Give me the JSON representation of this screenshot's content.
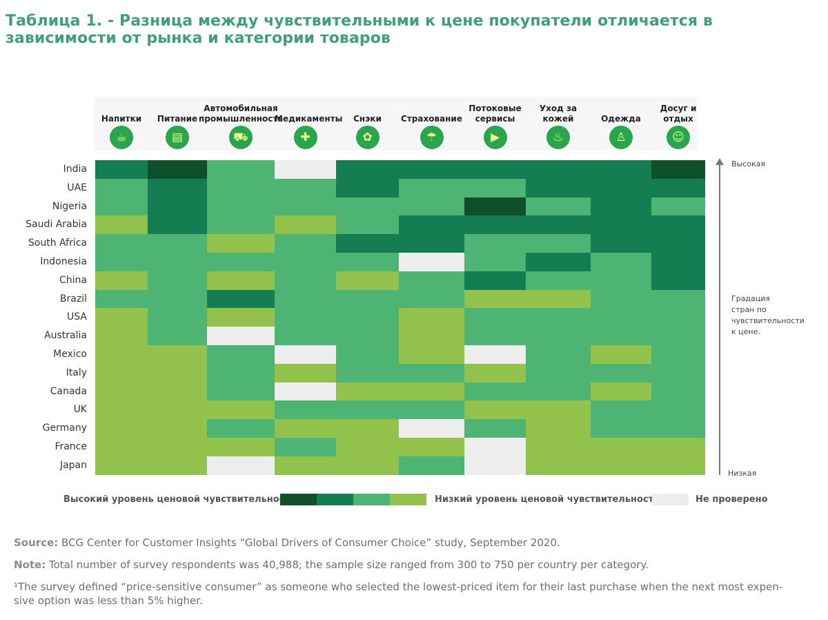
{
  "title": "Таблица 1. - Разница между чувствительными к цене покупатели отличается в зависимости от рынка и категории товаров",
  "categories": [
    {
      "label": "Напитки",
      "icon": "cup-icon",
      "glyph": "☕"
    },
    {
      "label": "Питание",
      "icon": "food-icon",
      "glyph": "▤"
    },
    {
      "label": "Автомобильная промышленность",
      "icon": "car-icon",
      "glyph": "⛟"
    },
    {
      "label": "Медикаменты",
      "icon": "medicine-bottle-icon",
      "glyph": "✚"
    },
    {
      "label": "Снэки",
      "icon": "snack-icon",
      "glyph": "✿"
    },
    {
      "label": "Страхование",
      "icon": "umbrella-icon",
      "glyph": "☂"
    },
    {
      "label": "Потоковые сервисы",
      "icon": "play-icon",
      "glyph": "▶"
    },
    {
      "label": "Уход за кожей",
      "icon": "skincare-icon",
      "glyph": "♨"
    },
    {
      "label": "Одежда",
      "icon": "clothing-icon",
      "glyph": "♙"
    },
    {
      "label": "Досуг и отдых",
      "icon": "leisure-icon",
      "glyph": "☺"
    }
  ],
  "colors": {
    "1": "#0f4f2a",
    "2": "#157d52",
    "3": "#4db473",
    "4": "#93c24c",
    "0": "#ededed"
  },
  "chart_data": {
    "type": "heatmap",
    "title": "Таблица 1. - Разница между чувствительными к цене покупатели отличается в зависимости от рынка и категории товаров",
    "countries": [
      "India",
      "UAE",
      "Nigeria",
      "Saudi Arabia",
      "South Africa",
      "Indonesia",
      "China",
      "Brazil",
      "USA",
      "Australia",
      "Mexico",
      "Italy",
      "Canada",
      "UK",
      "Germany",
      "France",
      "Japan"
    ],
    "value_scale": "1 = highest price sensitivity, 4 = lowest, 0 = not tested",
    "values": [
      [
        2,
        1,
        3,
        0,
        2,
        2,
        2,
        2,
        2,
        1
      ],
      [
        3,
        2,
        3,
        3,
        2,
        3,
        3,
        2,
        2,
        2
      ],
      [
        3,
        2,
        3,
        3,
        3,
        3,
        1,
        3,
        2,
        3
      ],
      [
        4,
        2,
        3,
        4,
        3,
        2,
        2,
        2,
        2,
        2
      ],
      [
        3,
        3,
        4,
        3,
        2,
        2,
        3,
        3,
        2,
        2
      ],
      [
        3,
        3,
        3,
        3,
        3,
        0,
        3,
        2,
        3,
        2
      ],
      [
        4,
        3,
        4,
        3,
        4,
        3,
        2,
        3,
        3,
        2
      ],
      [
        3,
        3,
        2,
        3,
        3,
        3,
        4,
        4,
        3,
        3
      ],
      [
        4,
        3,
        4,
        3,
        3,
        4,
        3,
        3,
        3,
        3
      ],
      [
        4,
        3,
        0,
        3,
        3,
        4,
        3,
        3,
        3,
        3
      ],
      [
        4,
        4,
        3,
        0,
        3,
        4,
        0,
        3,
        4,
        3
      ],
      [
        4,
        4,
        3,
        4,
        3,
        3,
        4,
        3,
        3,
        3
      ],
      [
        4,
        4,
        3,
        0,
        4,
        4,
        3,
        3,
        4,
        3
      ],
      [
        4,
        4,
        4,
        3,
        3,
        3,
        4,
        4,
        3,
        3
      ],
      [
        4,
        4,
        3,
        4,
        4,
        0,
        3,
        4,
        3,
        3
      ],
      [
        4,
        4,
        4,
        3,
        4,
        4,
        0,
        4,
        4,
        4
      ],
      [
        4,
        4,
        0,
        4,
        4,
        3,
        0,
        4,
        4,
        4
      ]
    ]
  },
  "axis": {
    "high": "Высокая",
    "low": "Низкая",
    "caption": [
      "Градация",
      "стран по",
      "чувствительности",
      "к цене."
    ]
  },
  "legend": {
    "high": "Высокий уровень ценовой чувствительности",
    "low": "Низкий уровень ценовой чувствительности",
    "untested": "Не проверено"
  },
  "footer": {
    "source_label": "Source:",
    "source_text": " BCG Center for Customer Insights “Global Drivers of Consumer Choice” study, September 2020.",
    "note_label": "Note:",
    "note_text": " Total number of survey respondents was 40,988; the sample size ranged from 300 to 750 per country per category.",
    "footnote_mark": "¹",
    "footnote_text": "The survey defined “price-sensitive consumer” as someone who selected the lowest-priced item for their last purchase when the next most expen-",
    "footnote_text2": "sive option was less than 5% higher."
  }
}
